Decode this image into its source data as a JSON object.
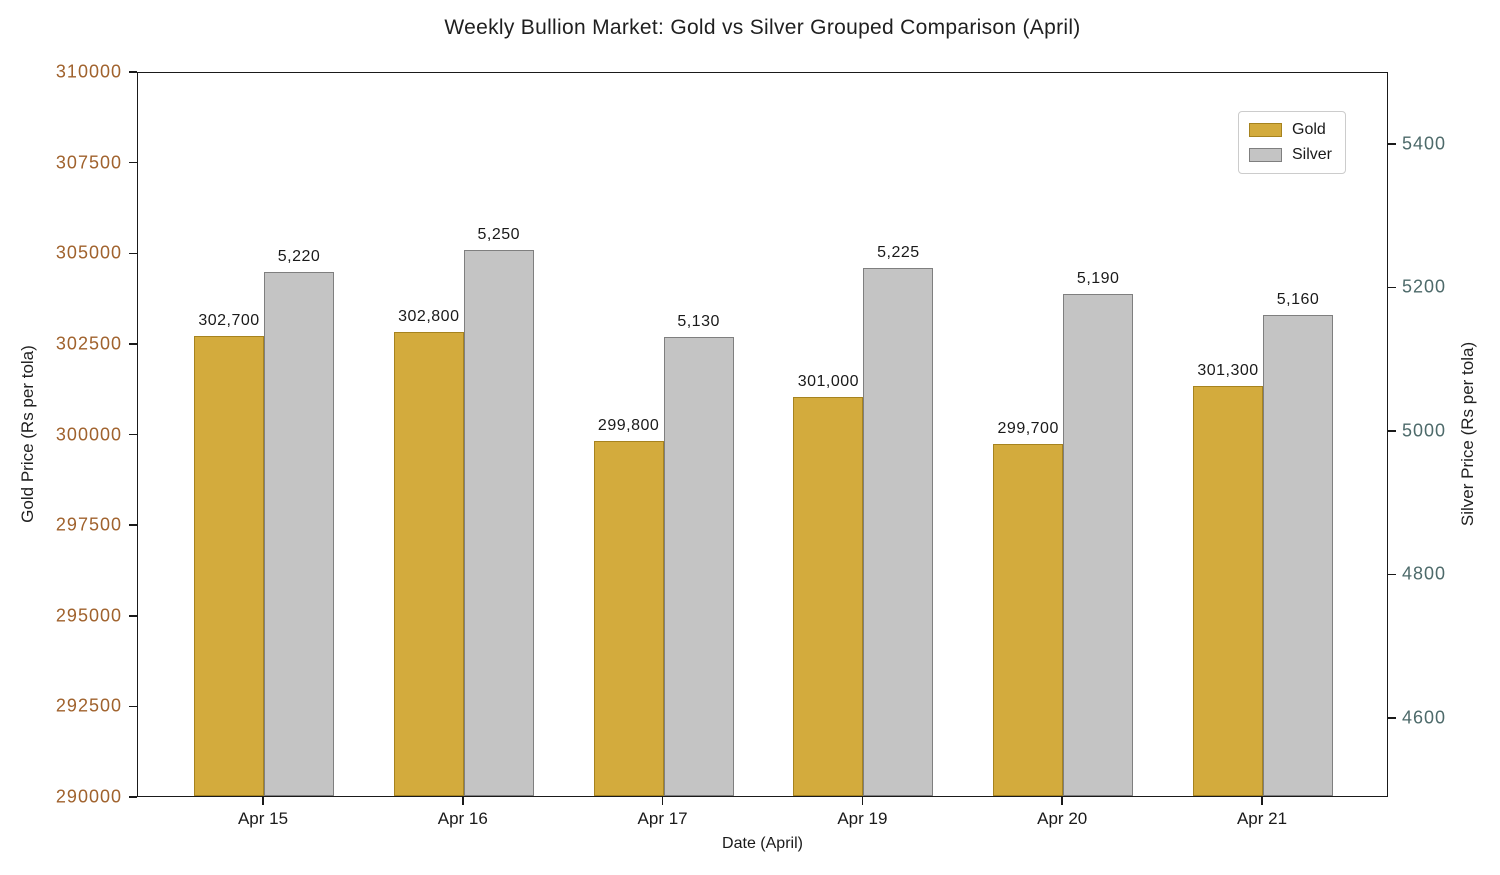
{
  "chart_data": {
    "type": "bar",
    "title": "Weekly Bullion Market: Gold vs Silver Grouped Comparison (April)",
    "xlabel": "Date (April)",
    "categories": [
      "Apr 15",
      "Apr 16",
      "Apr 17",
      "Apr 19",
      "Apr 20",
      "Apr 21"
    ],
    "series": [
      {
        "name": "Gold",
        "axis": "left",
        "values": [
          302700,
          302800,
          299800,
          301000,
          299700,
          301300
        ],
        "value_labels": [
          "302,700",
          "302,800",
          "299,800",
          "301,000",
          "299,700",
          "301,300"
        ],
        "color": "#d3ab3d",
        "edge_color": "#a6831f"
      },
      {
        "name": "Silver",
        "axis": "right",
        "values": [
          5220,
          5250,
          5130,
          5225,
          5190,
          5160
        ],
        "value_labels": [
          "5,220",
          "5,250",
          "5,130",
          "5,225",
          "5,190",
          "5,160"
        ],
        "color": "#c4c4c4",
        "edge_color": "#7f7f7f"
      }
    ],
    "left_axis": {
      "label": "Gold Price (Rs per tola)",
      "color": "#a0622d",
      "range": [
        290000,
        310000
      ],
      "ticks": [
        290000,
        292500,
        295000,
        297500,
        300000,
        302500,
        305000,
        307500,
        310000
      ],
      "tick_labels": [
        "290000",
        "292500",
        "295000",
        "297500",
        "300000",
        "302500",
        "305000",
        "307500",
        "310000"
      ]
    },
    "right_axis": {
      "label": "Silver Price (Rs per tola)",
      "color": "#4d6a6a",
      "range": [
        4490,
        5500
      ],
      "ticks": [
        4600,
        4800,
        5000,
        5200,
        5400
      ],
      "tick_labels": [
        "4600",
        "4800",
        "5000",
        "5200",
        "5400"
      ]
    },
    "legend": {
      "position": "top-right",
      "entries": [
        "Gold",
        "Silver"
      ]
    },
    "grid": "off"
  }
}
